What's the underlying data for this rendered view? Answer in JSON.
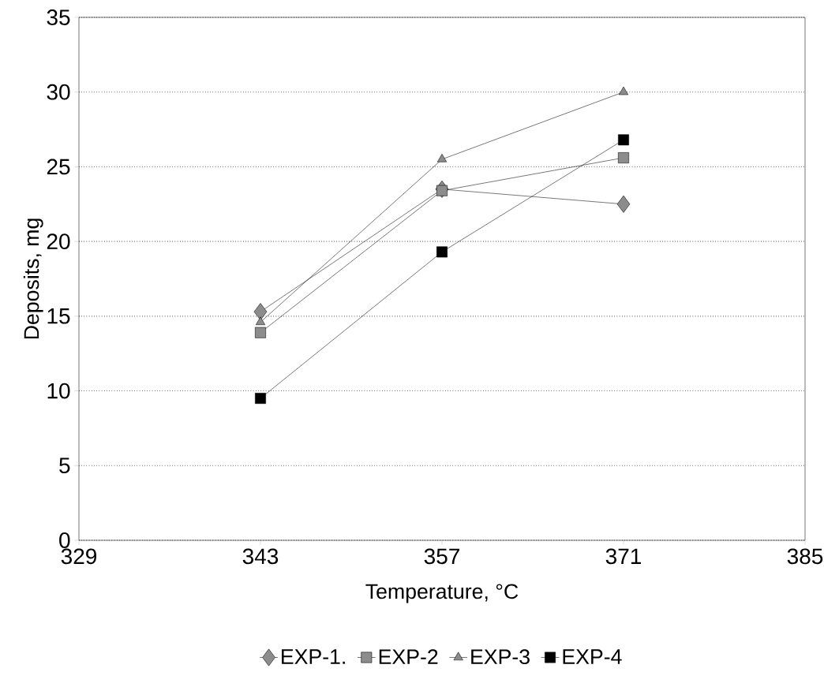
{
  "chart_data": {
    "type": "line",
    "xlabel": "Temperature, °C",
    "ylabel": "Deposits, mg",
    "x": [
      343,
      357,
      371
    ],
    "series": [
      {
        "name": "EXP-1.",
        "color": "#8c8c8c",
        "marker": "diamond",
        "values": [
          15.3,
          23.5,
          22.5
        ]
      },
      {
        "name": "EXP-2",
        "color": "#8c8c8c",
        "marker": "square",
        "values": [
          13.9,
          23.4,
          25.6
        ]
      },
      {
        "name": "EXP-3",
        "color": "#8c8c8c",
        "marker": "triangle",
        "values": [
          14.6,
          25.5,
          30
        ]
      },
      {
        "name": "EXP-4",
        "color": "#000000",
        "marker": "square",
        "values": [
          9.5,
          19.3,
          26.8
        ]
      }
    ],
    "xlim": [
      329,
      385
    ],
    "xticks": [
      329,
      343,
      357,
      371,
      385
    ],
    "ylim": [
      0,
      35
    ],
    "yticks": [
      0,
      5,
      10,
      15,
      20,
      25,
      30,
      35
    ],
    "grid": "y",
    "legend": "bottom",
    "line_style": "solid"
  }
}
